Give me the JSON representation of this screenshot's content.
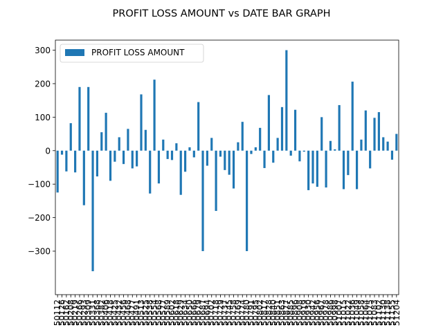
{
  "chart_data": {
    "type": "bar",
    "title": "PROFIT LOSS AMOUNT vs DATE BAR GRAPH",
    "xlabel": "",
    "ylabel": "",
    "ylim": [
      -430,
      330
    ],
    "yticks": [
      -300,
      -200,
      -100,
      0,
      100,
      200,
      300
    ],
    "ytick_labels": [
      "−300",
      "−200",
      "−100",
      "0",
      "100",
      "200",
      "300"
    ],
    "legend": "upper-left",
    "grid": false,
    "color": "#1f77b4",
    "series": [
      {
        "name": "PROFIT LOSS AMOUNT",
        "values": [
          -125,
          -12,
          -62,
          82,
          -65,
          190,
          -163,
          190,
          -360,
          -77,
          55,
          113,
          -90,
          -33,
          40,
          -40,
          65,
          -53,
          -47,
          168,
          62,
          -128,
          212,
          -98,
          33,
          -25,
          -28,
          22,
          -132,
          -63,
          10,
          -20,
          145,
          -300,
          -45,
          38,
          -180,
          -18,
          -58,
          -72,
          -113,
          25,
          86,
          -300,
          -10,
          10,
          68,
          -52,
          166,
          -36,
          38,
          130,
          300,
          -15,
          122,
          -32,
          -3,
          -118,
          -98,
          -108,
          100,
          -110,
          29,
          4,
          136,
          -115,
          -73,
          206,
          -115,
          33,
          120,
          -53,
          98,
          115,
          40,
          27,
          -27,
          50
        ]
      }
    ],
    "categories": [
      "50112",
      "50126",
      "50162",
      "50208",
      "50219",
      "50266",
      "50293",
      "50309",
      "50331",
      "50368",
      "50382",
      "50406",
      "50418",
      "50425",
      "50432",
      "50456",
      "50468",
      "50477",
      "50491",
      "50513",
      "50525",
      "50538",
      "50554",
      "50568",
      "50577",
      "50589",
      "50602",
      "50618",
      "50629",
      "50634",
      "50650",
      "50666",
      "50679",
      "50687",
      "50694",
      "50702",
      "50718",
      "50729",
      "50737",
      "50745",
      "50758",
      "50769",
      "50774",
      "50780",
      "50791",
      "50795",
      "50802",
      "50817",
      "50828",
      "50840",
      "50851",
      "50863",
      "50877",
      "50885",
      "50896",
      "50908",
      "50919",
      "50930",
      "50942",
      "50956",
      "50967",
      "50978",
      "50986",
      "50998",
      "51007",
      "51015",
      "51022",
      "51036",
      "51049",
      "51058",
      "51064",
      "51075",
      "51083",
      "51102",
      "51130",
      "51138",
      "51155",
      "51204"
    ],
    "xtick_labels": [
      "50112",
      "50126",
      "50162",
      "50208",
      "50219",
      "50266",
      "50293",
      "50309",
      "50331",
      "50368",
      "50382",
      "50406",
      "50418",
      "50425",
      "50432",
      "50456",
      "50468",
      "50477",
      "50491",
      "50513",
      "50525",
      "50538",
      "50554",
      "50568",
      "50577",
      "50589",
      "50602",
      "50618",
      "50629",
      "50634",
      "50650",
      "50666",
      "50679",
      "50687",
      "50694",
      "50702",
      "50718",
      "50729",
      "50737",
      "50745",
      "50758",
      "50769",
      "50774",
      "50780",
      "50791",
      "50795",
      "50802",
      "50817",
      "50828",
      "50840",
      "50851",
      "50863",
      "50877",
      "50885",
      "50896",
      "50908",
      "50919",
      "50930",
      "50942",
      "50956",
      "50967",
      "50978",
      "50986",
      "50998",
      "51007",
      "51015",
      "51022",
      "51036",
      "51049",
      "51058",
      "51064",
      "51075",
      "51083",
      "51102",
      "51130",
      "51138",
      "51155",
      "51204"
    ]
  }
}
